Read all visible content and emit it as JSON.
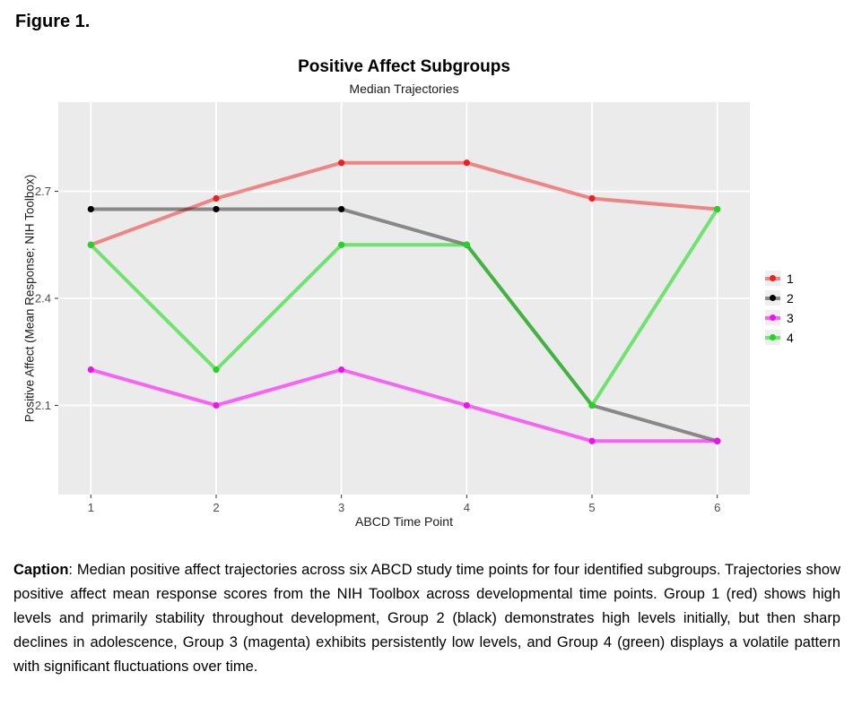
{
  "figure_label": "Figure 1.",
  "chart": {
    "title": "Positive Affect Subgroups",
    "subtitle": "Median Trajectories",
    "x_axis_label": "ABCD Time Point",
    "y_axis_label": "Positive Affect (Mean Response; NIH Toolbox)"
  },
  "chart_data": {
    "type": "line",
    "title": "Positive Affect Subgroups",
    "subtitle": "Median Trajectories",
    "xlabel": "ABCD Time Point",
    "ylabel": "Positive Affect (Mean Response; NIH Toolbox)",
    "x": [
      1,
      2,
      3,
      4,
      5,
      6
    ],
    "x_ticks": [
      1,
      2,
      3,
      4,
      5,
      6
    ],
    "y_ticks": [
      2.1,
      2.4,
      2.7
    ],
    "xlim": [
      0.74,
      6.26
    ],
    "ylim": [
      1.85,
      2.95
    ],
    "grid": true,
    "legend_position": "right",
    "panel_bg": "#ebebeb",
    "grid_color": "#ffffff",
    "tick_label_color": "#4d4d4d",
    "series": [
      {
        "name": "1",
        "color_line": "rgba(242,32,32,0.5)",
        "color_point": "#f01f1f",
        "values": [
          2.55,
          2.68,
          2.78,
          2.78,
          2.68,
          2.65
        ]
      },
      {
        "name": "2",
        "color_line": "rgba(0,0,0,0.42)",
        "color_point": "#000000",
        "values": [
          2.65,
          2.65,
          2.65,
          2.55,
          2.1,
          2.0
        ]
      },
      {
        "name": "3",
        "color_line": "rgba(255,0,255,0.58)",
        "color_point": "#ee12ee",
        "values": [
          2.2,
          2.1,
          2.2,
          2.1,
          2.0,
          2.0
        ]
      },
      {
        "name": "4",
        "color_line": "rgba(0,219,0,0.52)",
        "color_point": "#24d424",
        "values": [
          2.55,
          2.2,
          2.55,
          2.55,
          2.1,
          2.65
        ]
      }
    ]
  },
  "caption": {
    "label": "Caption",
    "body": ": Median positive affect trajectories across six ABCD study time points for four identified subgroups. Trajectories show positive affect mean response scores from the NIH Toolbox across developmental time points. Group 1 (red) shows high levels and primarily stability throughout development, Group 2 (black) demonstrates high levels initially, but then sharp declines in adolescence, Group 3 (magenta) exhibits persistently low levels, and Group 4 (green) displays a volatile pattern with significant fluctuations over time."
  }
}
